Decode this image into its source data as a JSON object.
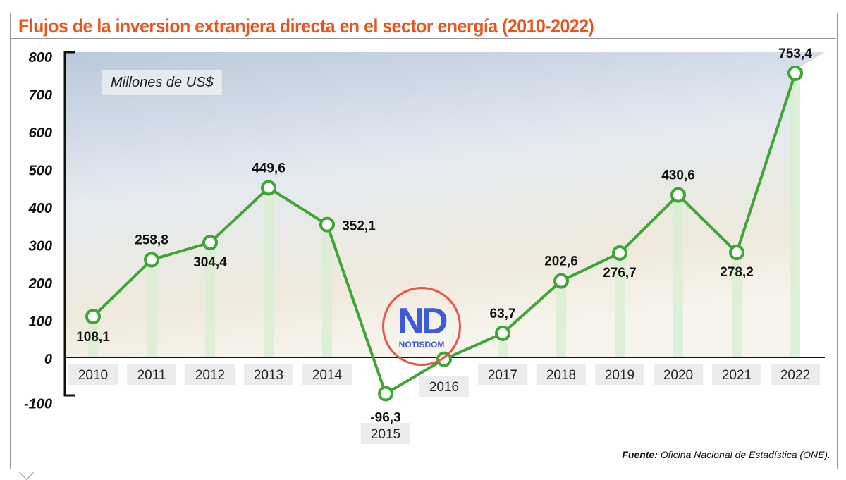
{
  "chart_data": {
    "type": "line",
    "title": "Flujos de la inversion extranjera directa en el sector energía (2010-2022)",
    "ylabel": "Millones de US$",
    "categories": [
      "2010",
      "2011",
      "2012",
      "2013",
      "2014",
      "2015",
      "2016",
      "2017",
      "2018",
      "2019",
      "2020",
      "2021",
      "2022"
    ],
    "values": [
      108.1,
      258.8,
      304.4,
      449.6,
      352.1,
      -96.3,
      -5,
      63.7,
      202.6,
      276.7,
      430.6,
      278.2,
      753.4
    ],
    "data_labels": [
      "108,1",
      "258,8",
      "304,4",
      "449,6",
      "352,1",
      "-96,3",
      "",
      "63,7",
      "202,6",
      "276,7",
      "430,6",
      "278,2",
      "753,4"
    ],
    "yticks": [
      "800",
      "700",
      "600",
      "500",
      "400",
      "300",
      "200",
      "100",
      "0",
      "-100"
    ],
    "ylim": [
      -100,
      800
    ],
    "grid": false,
    "line_color": "#3fa535",
    "column_color": "#d9efd2",
    "title_color": "#e8541e"
  },
  "source": {
    "label": "Fuente:",
    "text": "Oficina Nacional de Estadística (ONE)."
  },
  "logo": {
    "mark": "ND",
    "name": "NOTISDOM"
  }
}
